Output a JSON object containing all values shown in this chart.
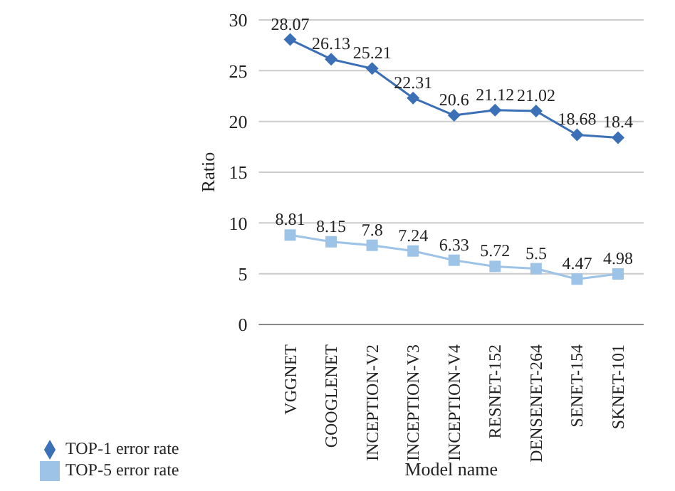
{
  "chart_data": {
    "type": "line",
    "xlabel": "Model name",
    "ylabel": "Ratio",
    "categories": [
      "VGGNET",
      "GOOGLENET",
      "INCEPTION-V2",
      "INCEPTION-V3",
      "INCEPTION-V4",
      "RESNET-152",
      "DENSENET-264",
      "SENET-154",
      "SKNET-101"
    ],
    "series": [
      {
        "name": "TOP-1 error rate",
        "color": "#3b6fb6",
        "marker": "diamond",
        "values": [
          28.07,
          26.13,
          25.21,
          22.31,
          20.6,
          21.12,
          21.02,
          18.68,
          18.4
        ]
      },
      {
        "name": "TOP-5 error rate",
        "color": "#9dc3e6",
        "marker": "square",
        "values": [
          8.81,
          8.15,
          7.8,
          7.24,
          6.33,
          5.72,
          5.5,
          4.47,
          4.98
        ]
      }
    ],
    "ylim": [
      0,
      30
    ],
    "yticks": [
      0,
      5,
      10,
      15,
      20,
      25,
      30
    ],
    "grid": "y",
    "legend": "bottom",
    "data_labels": true,
    "line_style": "solid"
  }
}
